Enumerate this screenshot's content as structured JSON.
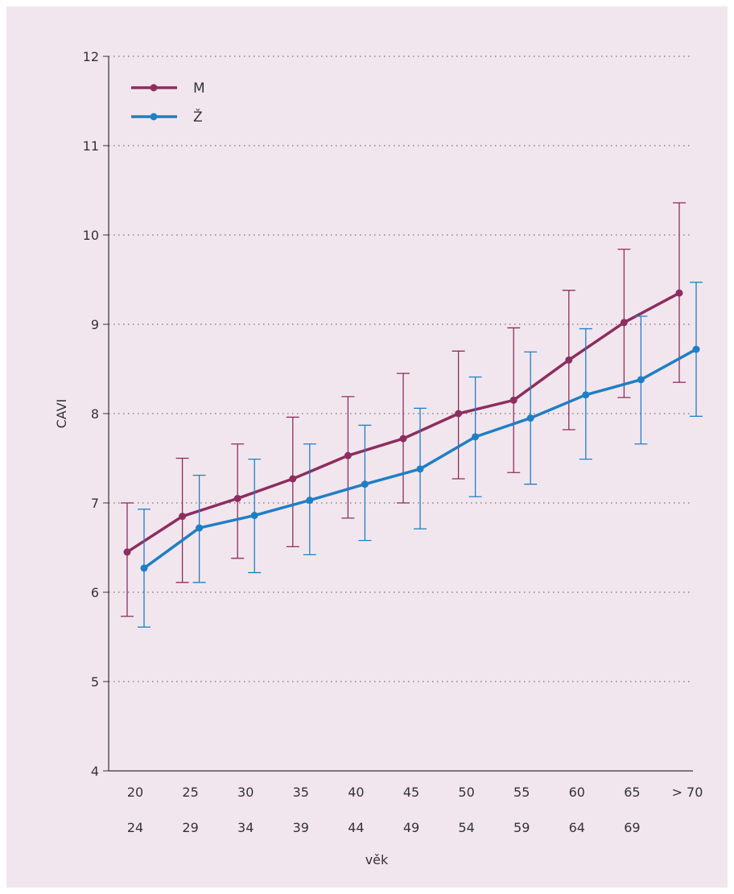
{
  "chart_data": {
    "type": "line",
    "xlabel": "věk",
    "ylabel": "CAVI",
    "ylim": [
      4,
      12
    ],
    "yticks": [
      4,
      5,
      6,
      7,
      8,
      9,
      10,
      11,
      12
    ],
    "grid": "horizontal-dotted",
    "legend_position": "top-left",
    "categories": [
      {
        "top": "20",
        "bottom": "24"
      },
      {
        "top": "25",
        "bottom": "29"
      },
      {
        "top": "30",
        "bottom": "34"
      },
      {
        "top": "35",
        "bottom": "39"
      },
      {
        "top": "40",
        "bottom": "44"
      },
      {
        "top": "45",
        "bottom": "49"
      },
      {
        "top": "50",
        "bottom": "54"
      },
      {
        "top": "55",
        "bottom": "59"
      },
      {
        "top": "60",
        "bottom": "64"
      },
      {
        "top": "65",
        "bottom": "69"
      },
      {
        "top": "> 70",
        "bottom": ""
      }
    ],
    "series": [
      {
        "name": "M",
        "color": "#8c2e5e",
        "values": [
          6.45,
          6.85,
          7.05,
          7.27,
          7.53,
          7.72,
          8.0,
          8.15,
          8.6,
          9.02,
          9.35
        ],
        "err_low": [
          5.73,
          6.11,
          6.38,
          6.51,
          6.83,
          7.0,
          7.27,
          7.34,
          7.82,
          8.18,
          8.35
        ],
        "err_high": [
          7.0,
          7.5,
          7.66,
          7.96,
          8.19,
          8.45,
          8.7,
          8.96,
          9.38,
          9.84,
          10.36
        ]
      },
      {
        "name": "Ž",
        "color": "#1f7fc4",
        "values": [
          6.27,
          6.72,
          6.86,
          7.03,
          7.21,
          7.38,
          7.74,
          7.95,
          8.21,
          8.38,
          8.72
        ],
        "err_low": [
          5.61,
          6.11,
          6.22,
          6.42,
          6.58,
          6.71,
          7.07,
          7.21,
          7.49,
          7.66,
          7.97
        ],
        "err_high": [
          6.93,
          7.31,
          7.49,
          7.66,
          7.87,
          8.06,
          8.41,
          8.69,
          8.95,
          9.09,
          9.47
        ]
      }
    ]
  }
}
